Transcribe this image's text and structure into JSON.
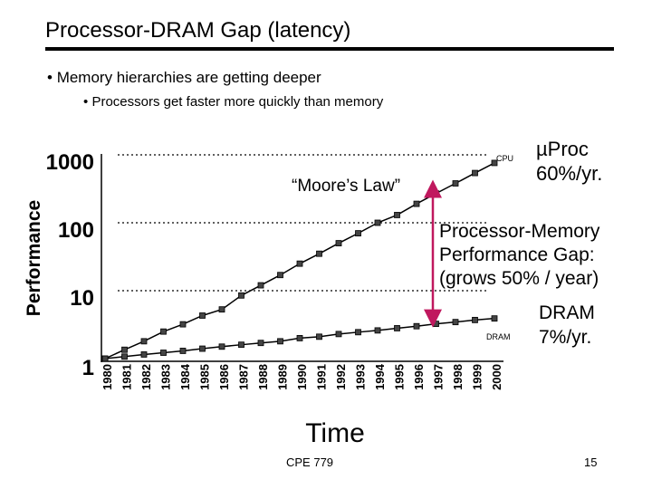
{
  "slide": {
    "title": "Processor-DRAM Gap (latency)",
    "bullets": [
      {
        "marker": "•",
        "text": "Memory hierarchies are getting deeper"
      },
      {
        "marker": "•",
        "text": "Processors get faster more quickly than memory"
      }
    ],
    "footer": {
      "course": "CPE 779",
      "page": "15"
    }
  },
  "chart_data": {
    "type": "line",
    "title": "",
    "xlabel": "Time",
    "ylabel": "Performance",
    "y_scale": "log",
    "ylim": [
      1,
      1000
    ],
    "y_ticks": [
      "1",
      "10",
      "100",
      "1000"
    ],
    "categories": [
      "1980",
      "1981",
      "1982",
      "1983",
      "1984",
      "1985",
      "1986",
      "1987",
      "1988",
      "1989",
      "1990",
      "1991",
      "1992",
      "1993",
      "1994",
      "1995",
      "1996",
      "1997",
      "1998",
      "1999",
      "2000"
    ],
    "series": [
      {
        "name": "CPU",
        "label": "CPU",
        "values": [
          1,
          1.35,
          1.8,
          2.5,
          3.2,
          4.3,
          5.3,
          8.5,
          12,
          17,
          25,
          35,
          50,
          70,
          100,
          130,
          190,
          270,
          380,
          540,
          760
        ]
      },
      {
        "name": "DRAM",
        "label": "DRAM",
        "values": [
          1,
          1.07,
          1.15,
          1.22,
          1.3,
          1.4,
          1.5,
          1.6,
          1.7,
          1.8,
          2.0,
          2.1,
          2.3,
          2.45,
          2.6,
          2.8,
          3.0,
          3.25,
          3.45,
          3.7,
          3.9
        ]
      }
    ],
    "annotations": {
      "moores_law": "“Moore’s Law”",
      "cpu_rate": [
        "µProc",
        "60%/yr."
      ],
      "dram_rate": [
        "DRAM",
        "7%/yr."
      ],
      "gap": [
        "Processor-Memory",
        "Performance Gap:",
        "(grows 50% / year)"
      ]
    },
    "colors": {
      "line": "#000000",
      "gap_arrow": "#c0185e"
    }
  }
}
